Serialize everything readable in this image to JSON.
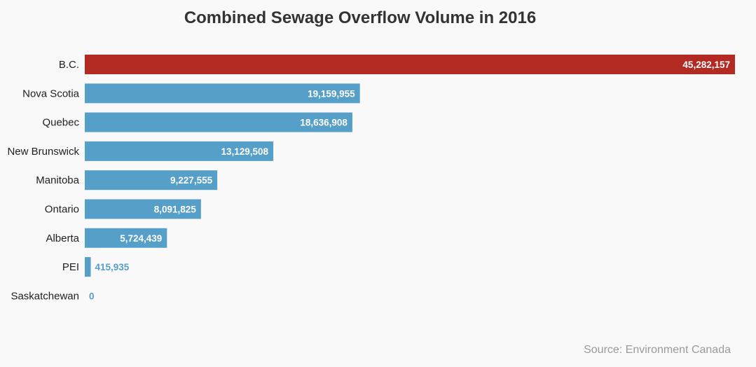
{
  "colors": {
    "highlight": "#b22a22",
    "bar": "#559fc9",
    "label_outside": "#559fc9"
  },
  "chart_data": {
    "type": "bar",
    "orientation": "horizontal",
    "title": "Combined Sewage Overflow Volume in 2016",
    "source": "Source: Environment Canada",
    "categories": [
      "B.C.",
      "Nova Scotia",
      "Quebec",
      "New Brunswick",
      "Manitoba",
      "Ontario",
      "Alberta",
      "PEI",
      "Saskatchewan"
    ],
    "values": [
      45282157,
      19159955,
      18636908,
      13129508,
      9227555,
      8091825,
      5724439,
      415935,
      0
    ],
    "value_labels": [
      "45,282,157",
      "19,159,955",
      "18,636,908",
      "13,129,508",
      "9,227,555",
      "8,091,825",
      "5,724,439",
      "415,935",
      "0"
    ],
    "highlight_category": "B.C.",
    "xlim": [
      0,
      45282157
    ],
    "grid": false,
    "legend": "none"
  }
}
